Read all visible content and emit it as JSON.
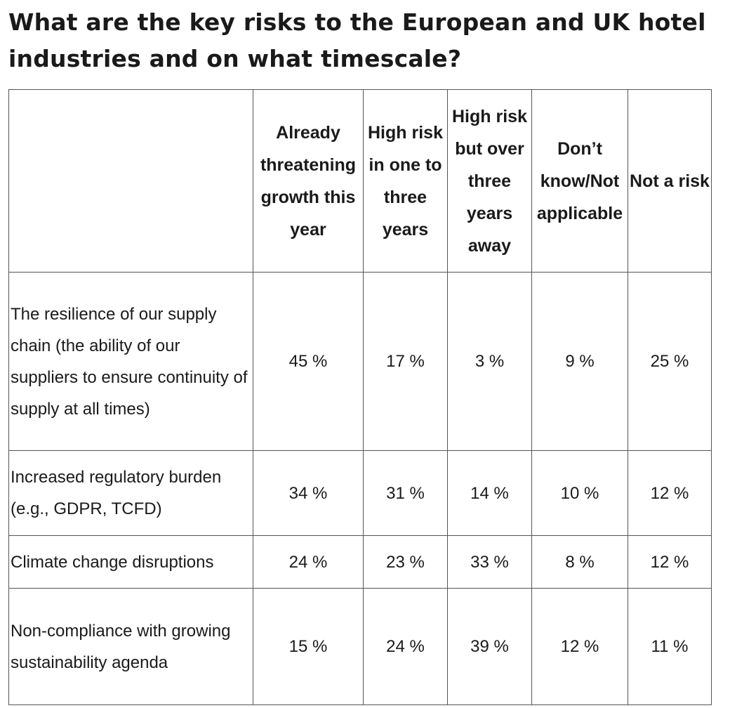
{
  "header": {
    "title": "What are the key risks to the European and UK hotel industries and on what timescale?"
  },
  "table": {
    "columns": [
      "",
      "Already threatening growth this year",
      "High risk in one to three years",
      "High risk but over three years away",
      "Don’t know/Not applicable",
      "Not a risk"
    ],
    "rows": [
      [
        "The resilience of our supply chain (the ability of our suppliers to ensure continuity of supply at all times)",
        "45 %",
        "17 %",
        "3 %",
        "9 %",
        "25 %"
      ],
      [
        "Increased regulatory burden (e.g., GDPR, TCFD)",
        "34 %",
        "31 %",
        "14 %",
        "10 %",
        "12 %"
      ],
      [
        "Climate change disruptions",
        "24 %",
        "23 %",
        "33 %",
        "8 %",
        "12 %"
      ],
      [
        "Non-compliance with growing sustainability agenda",
        "15 %",
        "24 %",
        "39 %",
        "12 %",
        "11 %"
      ]
    ]
  }
}
